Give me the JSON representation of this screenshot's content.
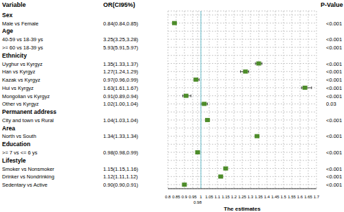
{
  "chart_data": {
    "type": "forest",
    "orientation": "horizontal",
    "columns": [
      "Variable",
      "OR(CI95%)",
      "P-Value"
    ],
    "xlabel": "The estimates",
    "xlim": [
      0.8,
      1.7
    ],
    "xticks": [
      0.8,
      0.85,
      0.9,
      0.95,
      0.98,
      1,
      1.05,
      1.1,
      1.15,
      1.2,
      1.25,
      1.3,
      1.35,
      1.4,
      1.45,
      1.5,
      1.55,
      1.6,
      1.65,
      1.7
    ],
    "reference": 1,
    "grid": true,
    "color": "#4d8c2a",
    "groups": [
      {
        "name": "Sex",
        "rows": [
          {
            "label": "Male vs Female",
            "or": 0.84,
            "ci": [
              0.84,
              0.85
            ],
            "or_label": "0.84(0.84,0.85)",
            "p": "<0.001"
          }
        ]
      },
      {
        "name": "Age",
        "rows": [
          {
            "label": "40-59 vs 18-39 ys",
            "or": 3.25,
            "ci": [
              3.25,
              3.28
            ],
            "or_label": "3.25(3.25,3.28)",
            "p": "<0.001"
          },
          {
            "label": ">= 60 vs 18-39 ys",
            "or": 5.93,
            "ci": [
              5.91,
              5.97
            ],
            "or_label": "5.93(5.91,5.97)",
            "p": "<0.001"
          }
        ]
      },
      {
        "name": "Ethnicity",
        "rows": [
          {
            "label": "Uyghur vs Kyrgyz",
            "or": 1.35,
            "ci": [
              1.33,
              1.37
            ],
            "or_label": "1.35(1.33,1.37)",
            "p": "<0.001"
          },
          {
            "label": "Han vs Kyrgyz",
            "or": 1.27,
            "ci": [
              1.24,
              1.29
            ],
            "or_label": "1.27(1.24,1.29)",
            "p": "<0.001"
          },
          {
            "label": "Kazak vs Kyrgyz",
            "or": 0.97,
            "ci": [
              0.96,
              0.99
            ],
            "or_label": "0.97(0.96,0.99)",
            "p": "<0.001"
          },
          {
            "label": "Hui vs Kyrgyz",
            "or": 1.63,
            "ci": [
              1.61,
              1.67
            ],
            "or_label": "1.63(1.61,1.67)",
            "p": "<0.001"
          },
          {
            "label": "Mongolian vs Kyrgyz",
            "or": 0.91,
            "ci": [
              0.89,
              0.94
            ],
            "or_label": "0.91(0.89,0.94)",
            "p": "<0.001"
          },
          {
            "label": "Other vs Kyrgyz",
            "or": 1.02,
            "ci": [
              1.0,
              1.04
            ],
            "or_label": "1.02(1.00,1.04)",
            "p": "0.03"
          }
        ]
      },
      {
        "name": "Permanent address",
        "rows": [
          {
            "label": "City and town vs Rural",
            "or": 1.04,
            "ci": [
              1.03,
              1.04
            ],
            "or_label": "1.04(1.03,1.04)",
            "p": "<0.001"
          }
        ]
      },
      {
        "name": "Area",
        "rows": [
          {
            "label": "North vs South",
            "or": 1.34,
            "ci": [
              1.33,
              1.34
            ],
            "or_label": "1.34(1.33,1.34)",
            "p": "<0.001"
          }
        ]
      },
      {
        "name": "Education",
        "rows": [
          {
            "label": ">= 7 vs <= 6 ys",
            "or": 0.98,
            "ci": [
              0.98,
              0.99
            ],
            "or_label": "0.98(0.98,0.99)",
            "p": "<0.001"
          }
        ]
      },
      {
        "name": "Lifestyle",
        "rows": [
          {
            "label": "Smoker vs Nonsmoker",
            "or": 1.15,
            "ci": [
              1.15,
              1.16
            ],
            "or_label": "1.15(1.15,1.16)",
            "p": "<0.001"
          },
          {
            "label": "Drinker  vs Nondrinking",
            "or": 1.12,
            "ci": [
              1.11,
              1.12
            ],
            "or_label": "1.12(1.11,1.12)",
            "p": "<0.001"
          },
          {
            "label": "Sedentary vs Active",
            "or": 0.9,
            "ci": [
              0.9,
              0.91
            ],
            "or_label": "0.90(0.90,0.91)",
            "p": "<0.001"
          }
        ]
      }
    ]
  }
}
